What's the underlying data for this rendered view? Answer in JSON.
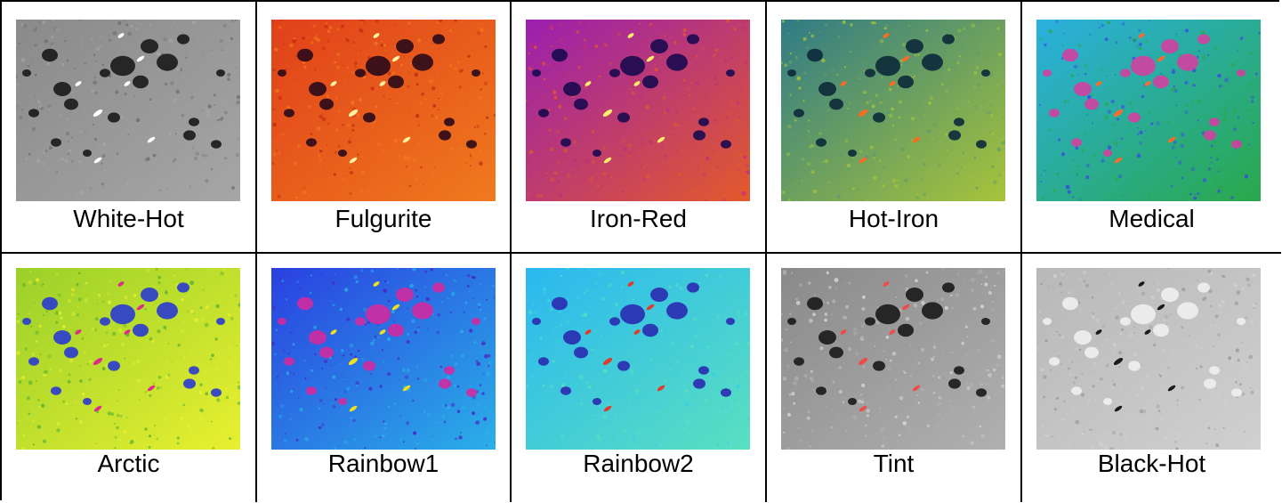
{
  "panels": [
    {
      "label": "White-Hot",
      "icon": "thermal-image",
      "palette": {
        "bg": "#8a8a8a",
        "bg2": "#a6a6a6",
        "dark": "#1a1a1a",
        "hot": "#ffffff",
        "mid": "#6e6e6e"
      }
    },
    {
      "label": "Fulgurite",
      "icon": "thermal-image",
      "palette": {
        "bg": "#e0401a",
        "bg2": "#f07a1e",
        "dark": "#2a0a1a",
        "hot": "#fff3a0",
        "mid": "#c02a10"
      }
    },
    {
      "label": "Iron-Red",
      "icon": "thermal-image",
      "palette": {
        "bg": "#9a1fb0",
        "bg2": "#e35a2a",
        "dark": "#1a0a50",
        "hot": "#fff06a",
        "mid": "#c0307a"
      }
    },
    {
      "label": "Hot-Iron",
      "icon": "thermal-image",
      "palette": {
        "bg": "#2f7b86",
        "bg2": "#a8c43a",
        "dark": "#0c2a3a",
        "hot": "#ff6a20",
        "mid": "#5c9a70"
      }
    },
    {
      "label": "Medical",
      "icon": "thermal-image",
      "palette": {
        "bg": "#2ab0e0",
        "bg2": "#2aa84a",
        "dark": "#d040a0",
        "hot": "#ff6a2a",
        "mid": "#3a4ae0"
      }
    },
    {
      "label": "Arctic",
      "icon": "thermal-image",
      "palette": {
        "bg": "#9ad02a",
        "bg2": "#e8f030",
        "dark": "#2a3ad0",
        "hot": "#e02a8a",
        "mid": "#5ab030"
      }
    },
    {
      "label": "Rainbow1",
      "icon": "thermal-image",
      "palette": {
        "bg": "#2a40e0",
        "bg2": "#2ab0e8",
        "dark": "#d02aa0",
        "hot": "#f0e020",
        "mid": "#4a20c0"
      }
    },
    {
      "label": "Rainbow2",
      "icon": "thermal-image",
      "palette": {
        "bg": "#2ab8f0",
        "bg2": "#5ae0c0",
        "dark": "#2a2ab0",
        "hot": "#e03a2a",
        "mid": "#3ad0e0"
      }
    },
    {
      "label": "Tint",
      "icon": "thermal-image",
      "palette": {
        "bg": "#8a8a8a",
        "bg2": "#b0b0b0",
        "dark": "#1a1a1a",
        "hot": "#f04a4a",
        "mid": "#d8d8d8"
      }
    },
    {
      "label": "Black-Hot",
      "icon": "thermal-image",
      "palette": {
        "bg": "#b8b8b8",
        "bg2": "#d0d0d0",
        "dark": "#f0f0f0",
        "hot": "#1a1a1a",
        "mid": "#9a9a9a"
      }
    }
  ]
}
